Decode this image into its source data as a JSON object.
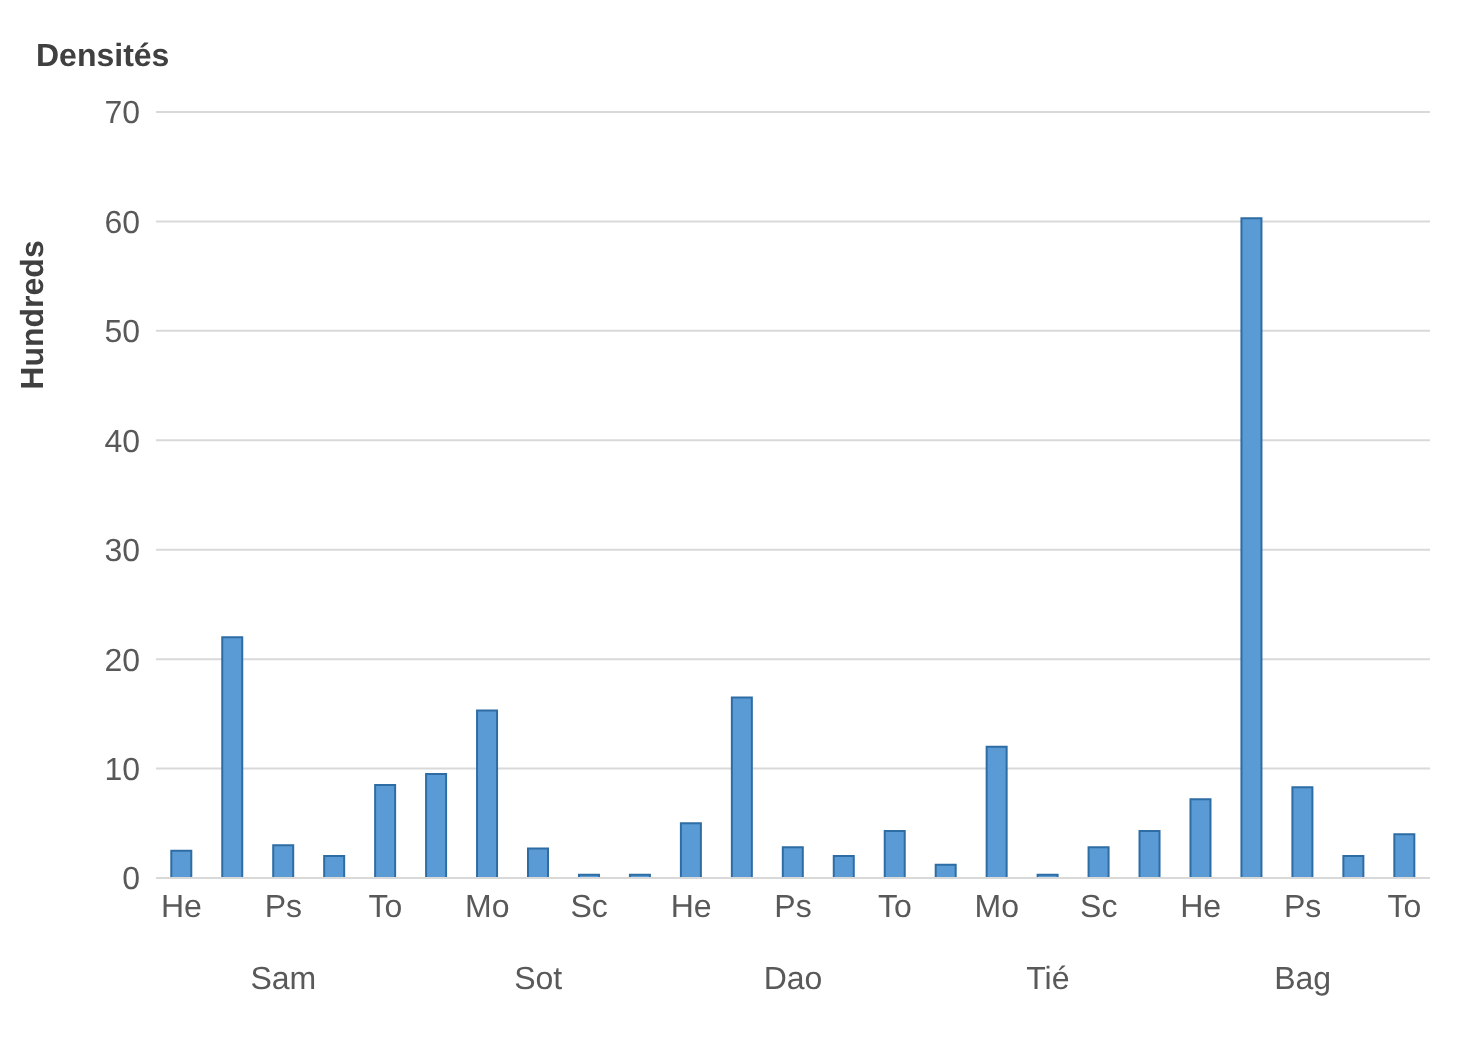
{
  "chart_data": {
    "type": "bar",
    "title": "Densités",
    "ylabel": "Hundreds",
    "categories": [
      "He",
      null,
      "Ps",
      null,
      "To",
      null,
      "Mo",
      null,
      "Sc",
      null,
      "He",
      null,
      "Ps",
      null,
      "To",
      null,
      "Mo",
      null,
      "Sc",
      null,
      "He",
      null,
      "Ps",
      null,
      "To"
    ],
    "values": [
      2.5,
      22,
      3,
      2,
      8.5,
      9.5,
      15.3,
      2.7,
      0.3,
      0.3,
      5,
      16.5,
      2.8,
      2,
      4.3,
      1.2,
      12,
      0.3,
      2.8,
      4.3,
      7.2,
      60.3,
      8.3,
      2,
      4
    ],
    "color": "#5b9bd5",
    "ylim": [
      0,
      70
    ],
    "yticks": [
      0,
      10,
      20,
      30,
      40,
      50,
      60,
      70
    ],
    "grid": "y",
    "annotations": [
      "Sam",
      "Sot",
      "Dao",
      "Tié",
      "Bag"
    ]
  }
}
